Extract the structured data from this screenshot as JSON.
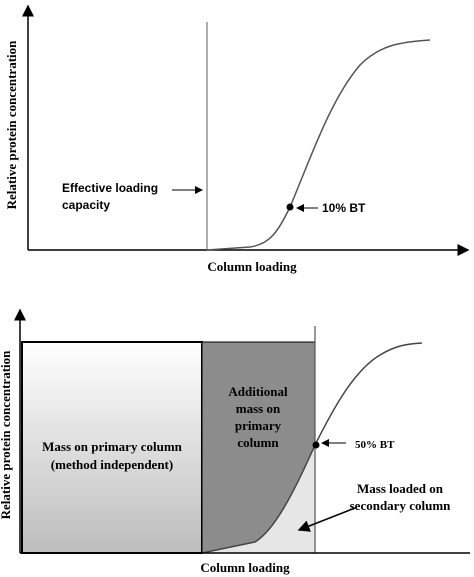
{
  "panels": [
    {
      "y_label": "Relative protein concentration",
      "x_label": "Column loading",
      "annotations": {
        "capacity": [
          "Effective loading",
          "capacity"
        ],
        "breakthrough": "10% BT"
      }
    },
    {
      "y_label": "Relative protein concentration",
      "x_label": "Column loading",
      "annotations": {
        "primary": [
          "Mass on primary column",
          "(method independent)"
        ],
        "additional": [
          "Additional",
          "mass on",
          "primary",
          "column"
        ],
        "breakthrough": "50% BT",
        "secondary": [
          "Mass loaded on",
          "secondary column"
        ]
      }
    }
  ]
}
